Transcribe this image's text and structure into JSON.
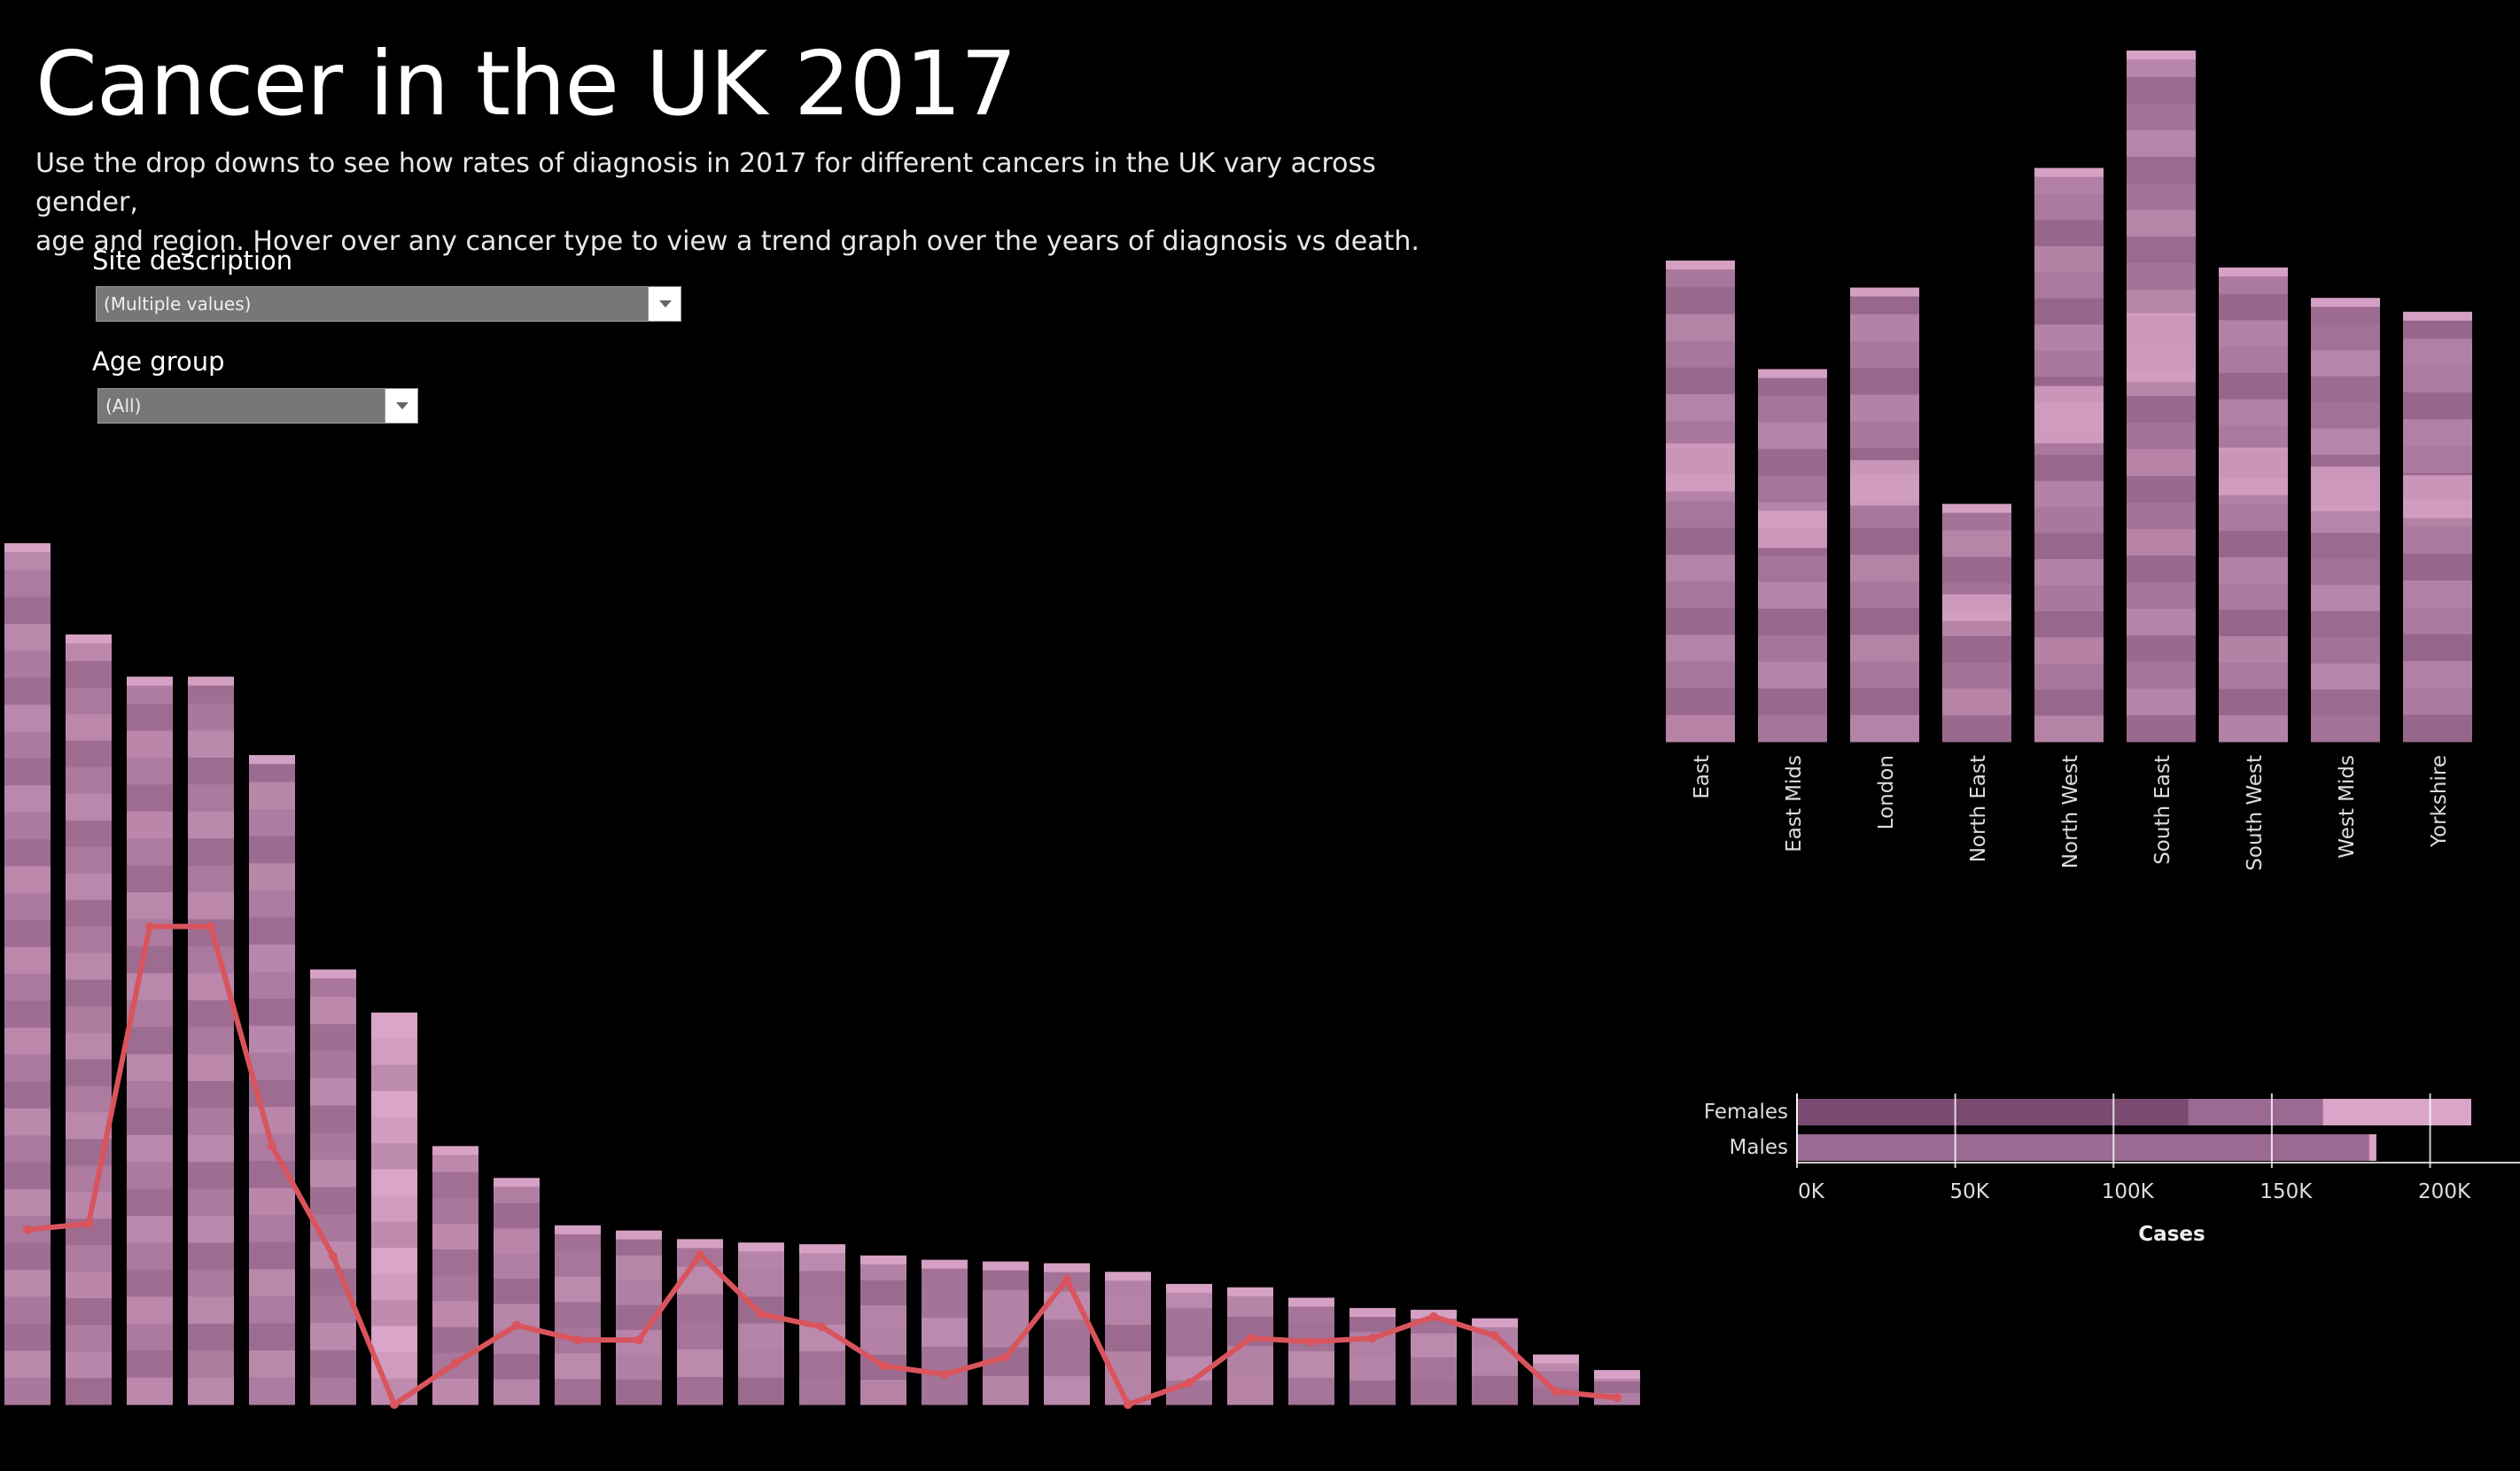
{
  "header": {
    "title": "Cancer in the UK 2017",
    "subtitle_line1": "Use the drop downs to see how rates of diagnosis in 2017 for different cancers in the UK vary across gender,",
    "subtitle_line2": "age and region. Hover over any cancer type to view a trend graph over the years of diagnosis vs death."
  },
  "filters": {
    "site": {
      "label": "Site description",
      "value": "(Multiple values)"
    },
    "age": {
      "label": "Age group",
      "value": "(All)"
    }
  },
  "colors": {
    "background": "#000000",
    "bar_dark": "#7a4b70",
    "bar_mid": "#9a6a92",
    "bar_light": "#d9a5c8",
    "line": "#d9545c"
  },
  "chart_data": [
    {
      "type": "bar",
      "id": "age_trend",
      "title": "",
      "xlabel": "",
      "ylabel": "",
      "ylim": [
        0,
        1
      ],
      "series": [
        {
          "values": [
            1.0,
            0.894,
            0.845,
            0.845,
            0.754,
            0.505,
            0.455,
            0.3,
            0.263,
            0.208,
            0.202,
            0.192,
            0.188,
            0.186,
            0.173,
            0.168,
            0.166,
            0.164,
            0.154,
            0.14,
            0.136,
            0.124,
            0.112,
            0.11,
            0.1,
            0.058,
            0.04
          ]
        },
        {
          "type": "line",
          "values": [
            0.203,
            0.21,
            0.555,
            0.555,
            0.3,
            0.172,
            0.0,
            0.048,
            0.092,
            0.075,
            0.075,
            0.174,
            0.105,
            0.09,
            0.045,
            0.035,
            0.055,
            0.145,
            0.0,
            0.025,
            0.077,
            0.073,
            0.077,
            0.102,
            0.08,
            0.015,
            0.008
          ]
        }
      ]
    },
    {
      "type": "bar",
      "id": "region",
      "categories": [
        "East",
        "East Mids",
        "London",
        "North East",
        "North West",
        "South East",
        "South West",
        "West Mids",
        "Yorkshire"
      ],
      "values": [
        0.696,
        0.539,
        0.657,
        0.344,
        0.83,
        1.0,
        0.686,
        0.642,
        0.622
      ],
      "xlabel": "",
      "ylabel": ""
    },
    {
      "type": "bar",
      "id": "gender",
      "orientation": "horizontal",
      "categories": [
        "Females",
        "Males"
      ],
      "values": [
        213000,
        183000
      ],
      "xlabel": "Cases",
      "xticks": [
        "0K",
        "50K",
        "100K",
        "150K",
        "200K"
      ],
      "xlim": [
        0,
        220000
      ]
    }
  ]
}
